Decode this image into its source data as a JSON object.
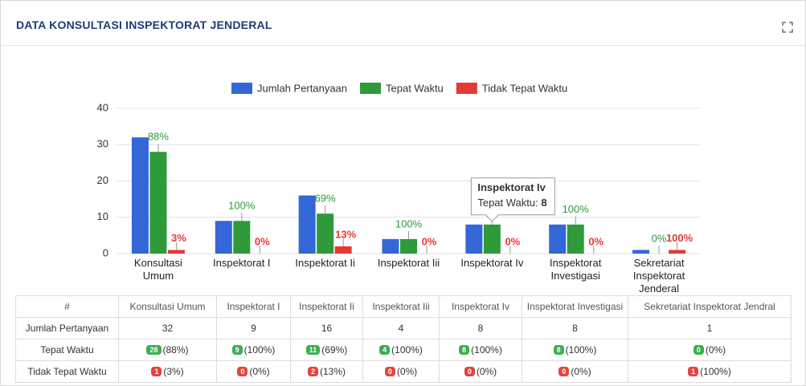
{
  "header": {
    "title": "DATA KONSULTASI INSPEKTORAT JENDERAL"
  },
  "chart_data": {
    "type": "bar",
    "categories": [
      "Konsultasi Umum",
      "Inspektorat I",
      "Inspektorat Ii",
      "Inspektorat Iii",
      "Inspektorat Iv",
      "Inspektorat Investigasi",
      "Sekretariat Inspektorat Jenderal"
    ],
    "series": [
      {
        "name": "Jumlah Pertanyaan",
        "color": "#3366d6",
        "values": [
          32,
          9,
          16,
          4,
          8,
          8,
          1
        ]
      },
      {
        "name": "Tepat Waktu",
        "color": "#2e9a3a",
        "values": [
          28,
          9,
          11,
          4,
          8,
          8,
          0
        ],
        "percent_labels": [
          "88%",
          "100%",
          "69%",
          "100%",
          "100%",
          "100%",
          "0%"
        ]
      },
      {
        "name": "Tidak Tepat Waktu",
        "color": "#e53935",
        "values": [
          1,
          0,
          2,
          0,
          0,
          0,
          1
        ],
        "percent_labels": [
          "3%",
          "0%",
          "13%",
          "0%",
          "0%",
          "0%",
          "100%"
        ]
      }
    ],
    "ylim": [
      0,
      40
    ],
    "yticks": [
      0,
      10,
      20,
      30,
      40
    ],
    "grid": true,
    "legend": "top"
  },
  "table": {
    "header": [
      "#",
      "Konsultasi Umum",
      "Inspektorat I",
      "Inspektorat Ii",
      "Inspektorat Iii",
      "Inspektorat Iv",
      "Inspektorat Investigasi",
      "Sekretariat Inspektorat Jendral"
    ],
    "rows": [
      {
        "label": "Jumlah Pertanyaan",
        "cells": [
          "32",
          "9",
          "16",
          "4",
          "8",
          "8",
          "1"
        ]
      },
      {
        "label": "Tepat Waktu",
        "badge_color": "#3cae4f",
        "cells": [
          {
            "badge": "28",
            "text": "(88%)"
          },
          {
            "badge": "9",
            "text": "(100%)"
          },
          {
            "badge": "11",
            "text": "(69%)"
          },
          {
            "badge": "4",
            "text": "(100%)"
          },
          {
            "badge": "8",
            "text": "(100%)"
          },
          {
            "badge": "8",
            "text": "(100%)"
          },
          {
            "badge": "0",
            "text": "(0%)"
          }
        ]
      },
      {
        "label": "Tidak Tepat Waktu",
        "badge_color": "#e0453f",
        "cells": [
          {
            "badge": "1",
            "text": "(3%)"
          },
          {
            "badge": "0",
            "text": "(0%)"
          },
          {
            "badge": "2",
            "text": "(13%)"
          },
          {
            "badge": "0",
            "text": "(0%)"
          },
          {
            "badge": "0",
            "text": "(0%)"
          },
          {
            "badge": "0",
            "text": "(0%)"
          },
          {
            "badge": "1",
            "text": "(100%)"
          }
        ]
      }
    ]
  }
}
